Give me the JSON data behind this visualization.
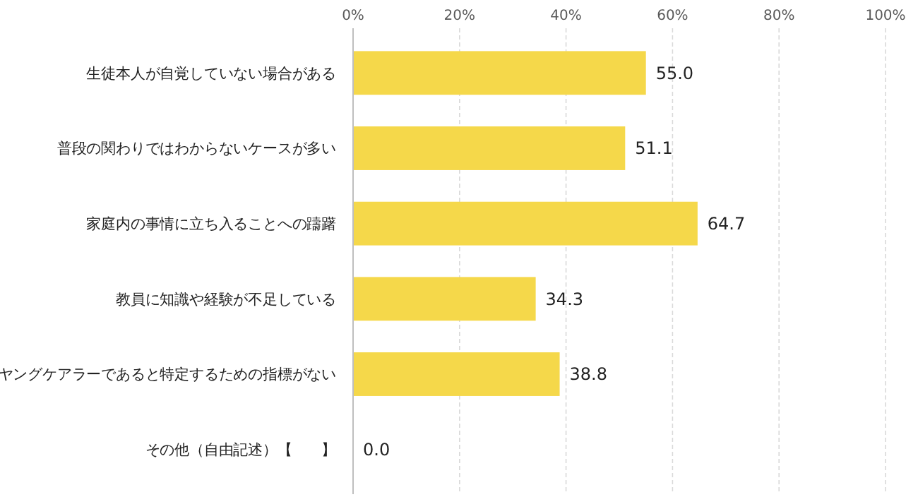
{
  "chart_data": {
    "type": "bar",
    "orientation": "horizontal",
    "categories": [
      "生徒本人が自覚していない場合がある",
      "普段の関わりではわからないケースが多い",
      "家庭内の事情に立ち入ることへの躊躇",
      "教員に知識や経験が不足している",
      "ヤングケアラーであると特定するための指標がない",
      "その他（自由記述）【　　】"
    ],
    "values": [
      55.0,
      51.1,
      64.7,
      34.3,
      38.8,
      0.0
    ],
    "value_labels": [
      "55.0",
      "51.1",
      "64.7",
      "34.3",
      "38.8",
      "0.0"
    ],
    "color": "#f5d84a",
    "xlim": [
      0,
      100
    ],
    "xticks": [
      {
        "value": 0,
        "label": "0%"
      },
      {
        "value": 20,
        "label": "20%"
      },
      {
        "value": 40,
        "label": "40%"
      },
      {
        "value": 60,
        "label": "60%"
      },
      {
        "value": 80,
        "label": "80%"
      },
      {
        "value": 100,
        "label": "100%"
      }
    ],
    "grid": "x"
  }
}
